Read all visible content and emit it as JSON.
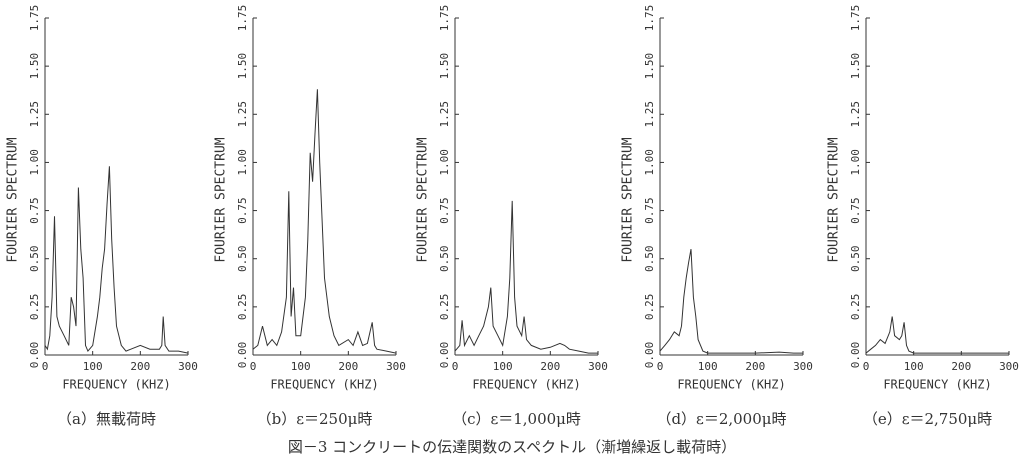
{
  "chart_data": [
    {
      "type": "line",
      "y_label": "FOURIER SPECTRUM",
      "x_label": "FREQUENCY (KHZ)",
      "caption": "（a）無載荷時",
      "color": "#333333",
      "xlim": [
        0,
        300
      ],
      "xticks": [
        0,
        100,
        200,
        300
      ],
      "ylim": [
        0,
        1.75
      ],
      "yticks": [
        {
          "value": 0,
          "label": "0.00"
        },
        {
          "value": 0.25,
          "label": "0.25"
        },
        {
          "value": 0.5,
          "label": "0.50"
        },
        {
          "value": 0.75,
          "label": "0.75"
        },
        {
          "value": 1,
          "label": "1.00"
        },
        {
          "value": 1.25,
          "label": "1.25"
        },
        {
          "value": 1.5,
          "label": "1.50"
        },
        {
          "value": 1.75,
          "label": "1.75"
        }
      ],
      "x": [
        0,
        5,
        10,
        15,
        20,
        25,
        30,
        40,
        50,
        55,
        60,
        65,
        70,
        75,
        80,
        85,
        90,
        100,
        110,
        115,
        120,
        125,
        130,
        135,
        140,
        145,
        150,
        160,
        170,
        180,
        200,
        220,
        240,
        245,
        248,
        252,
        260,
        280,
        300
      ],
      "values": [
        0.05,
        0.03,
        0.1,
        0.3,
        0.72,
        0.2,
        0.15,
        0.1,
        0.05,
        0.3,
        0.25,
        0.15,
        0.87,
        0.55,
        0.4,
        0.05,
        0.02,
        0.05,
        0.2,
        0.3,
        0.45,
        0.55,
        0.78,
        0.98,
        0.6,
        0.35,
        0.15,
        0.05,
        0.02,
        0.03,
        0.05,
        0.03,
        0.03,
        0.05,
        0.2,
        0.05,
        0.02,
        0.02,
        0.01
      ]
    },
    {
      "type": "line",
      "y_label": "FOURIER SPECTRUM",
      "x_label": "FREQUENCY (KHZ)",
      "caption": "（b）ε＝250μ時",
      "color": "#333333",
      "xlim": [
        0,
        300
      ],
      "xticks": [
        0,
        100,
        200,
        300
      ],
      "ylim": [
        0,
        1.75
      ],
      "yticks": [
        {
          "value": 0,
          "label": "0.00"
        },
        {
          "value": 0.25,
          "label": "0.25"
        },
        {
          "value": 0.5,
          "label": "0.50"
        },
        {
          "value": 0.75,
          "label": "0.75"
        },
        {
          "value": 1,
          "label": "1.00"
        },
        {
          "value": 1.25,
          "label": "1.25"
        },
        {
          "value": 1.5,
          "label": "1.50"
        },
        {
          "value": 1.75,
          "label": "1.75"
        }
      ],
      "x": [
        0,
        10,
        20,
        30,
        40,
        50,
        60,
        70,
        75,
        80,
        85,
        90,
        100,
        110,
        115,
        120,
        125,
        130,
        135,
        140,
        145,
        150,
        160,
        170,
        180,
        200,
        210,
        220,
        230,
        240,
        250,
        255,
        260,
        280,
        300
      ],
      "values": [
        0.03,
        0.05,
        0.15,
        0.05,
        0.08,
        0.05,
        0.12,
        0.3,
        0.85,
        0.2,
        0.35,
        0.1,
        0.1,
        0.3,
        0.6,
        1.05,
        0.9,
        1.15,
        1.38,
        1.0,
        0.7,
        0.4,
        0.2,
        0.1,
        0.05,
        0.08,
        0.05,
        0.12,
        0.05,
        0.06,
        0.17,
        0.05,
        0.03,
        0.02,
        0.01
      ]
    },
    {
      "type": "line",
      "y_label": "FOURIER SPECTRUM",
      "x_label": "FREQUENCY (KHZ)",
      "caption": "（c）ε＝1,000μ時",
      "color": "#333333",
      "xlim": [
        0,
        300
      ],
      "xticks": [
        0,
        100,
        200,
        300
      ],
      "ylim": [
        0,
        1.75
      ],
      "yticks": [
        {
          "value": 0,
          "label": "0.00"
        },
        {
          "value": 0.25,
          "label": "0.25"
        },
        {
          "value": 0.5,
          "label": "0.50"
        },
        {
          "value": 0.75,
          "label": "0.75"
        },
        {
          "value": 1,
          "label": "1.00"
        },
        {
          "value": 1.25,
          "label": "1.25"
        },
        {
          "value": 1.5,
          "label": "1.50"
        },
        {
          "value": 1.75,
          "label": "1.75"
        }
      ],
      "x": [
        0,
        10,
        15,
        20,
        30,
        40,
        50,
        60,
        70,
        75,
        80,
        90,
        100,
        110,
        115,
        120,
        125,
        130,
        140,
        145,
        150,
        160,
        180,
        200,
        220,
        230,
        240,
        260,
        280,
        300
      ],
      "values": [
        0.02,
        0.05,
        0.18,
        0.05,
        0.1,
        0.05,
        0.1,
        0.15,
        0.25,
        0.35,
        0.15,
        0.1,
        0.05,
        0.2,
        0.4,
        0.8,
        0.3,
        0.15,
        0.1,
        0.2,
        0.08,
        0.05,
        0.03,
        0.04,
        0.06,
        0.05,
        0.03,
        0.02,
        0.01,
        0.01
      ]
    },
    {
      "type": "line",
      "y_label": "FOURIER SPECTRUM",
      "x_label": "FREQUENCY (KHZ)",
      "caption": "（d）ε＝2,000μ時",
      "color": "#333333",
      "xlim": [
        0,
        300
      ],
      "xticks": [
        0,
        100,
        200,
        300
      ],
      "ylim": [
        0,
        1.75
      ],
      "yticks": [
        {
          "value": 0,
          "label": "0.00"
        },
        {
          "value": 0.25,
          "label": "0.25"
        },
        {
          "value": 0.5,
          "label": "0.50"
        },
        {
          "value": 0.75,
          "label": "0.75"
        },
        {
          "value": 1,
          "label": "1.00"
        },
        {
          "value": 1.25,
          "label": "1.25"
        },
        {
          "value": 1.5,
          "label": "1.50"
        },
        {
          "value": 1.75,
          "label": "1.75"
        }
      ],
      "x": [
        0,
        10,
        20,
        30,
        40,
        45,
        50,
        55,
        60,
        65,
        70,
        75,
        80,
        90,
        100,
        120,
        150,
        200,
        250,
        280,
        300
      ],
      "values": [
        0.02,
        0.05,
        0.08,
        0.12,
        0.1,
        0.15,
        0.3,
        0.4,
        0.48,
        0.55,
        0.3,
        0.2,
        0.08,
        0.02,
        0.01,
        0.01,
        0.01,
        0.01,
        0.015,
        0.01,
        0.01
      ]
    },
    {
      "type": "line",
      "y_label": "FOURIER SPECTRUM",
      "x_label": "FREQUENCY (KHZ)",
      "caption": "（e）ε＝2,750μ時",
      "color": "#333333",
      "xlim": [
        0,
        300
      ],
      "xticks": [
        0,
        100,
        200,
        300
      ],
      "ylim": [
        0,
        1.75
      ],
      "yticks": [
        {
          "value": 0,
          "label": "0.00"
        },
        {
          "value": 0.25,
          "label": "0.25"
        },
        {
          "value": 0.5,
          "label": "0.50"
        },
        {
          "value": 0.75,
          "label": "0.75"
        },
        {
          "value": 1,
          "label": "1.00"
        },
        {
          "value": 1.25,
          "label": "1.25"
        },
        {
          "value": 1.5,
          "label": "1.50"
        },
        {
          "value": 1.75,
          "label": "1.75"
        }
      ],
      "x": [
        0,
        10,
        20,
        30,
        40,
        50,
        55,
        60,
        70,
        75,
        80,
        85,
        90,
        100,
        150,
        200,
        250,
        300
      ],
      "values": [
        0.01,
        0.03,
        0.05,
        0.08,
        0.06,
        0.12,
        0.2,
        0.1,
        0.08,
        0.1,
        0.17,
        0.05,
        0.02,
        0.01,
        0.01,
        0.01,
        0.01,
        0.01
      ]
    }
  ],
  "figure_caption": "図－3 コンクリートの伝達関数のスペクトル（漸増繰返し載荷時）"
}
